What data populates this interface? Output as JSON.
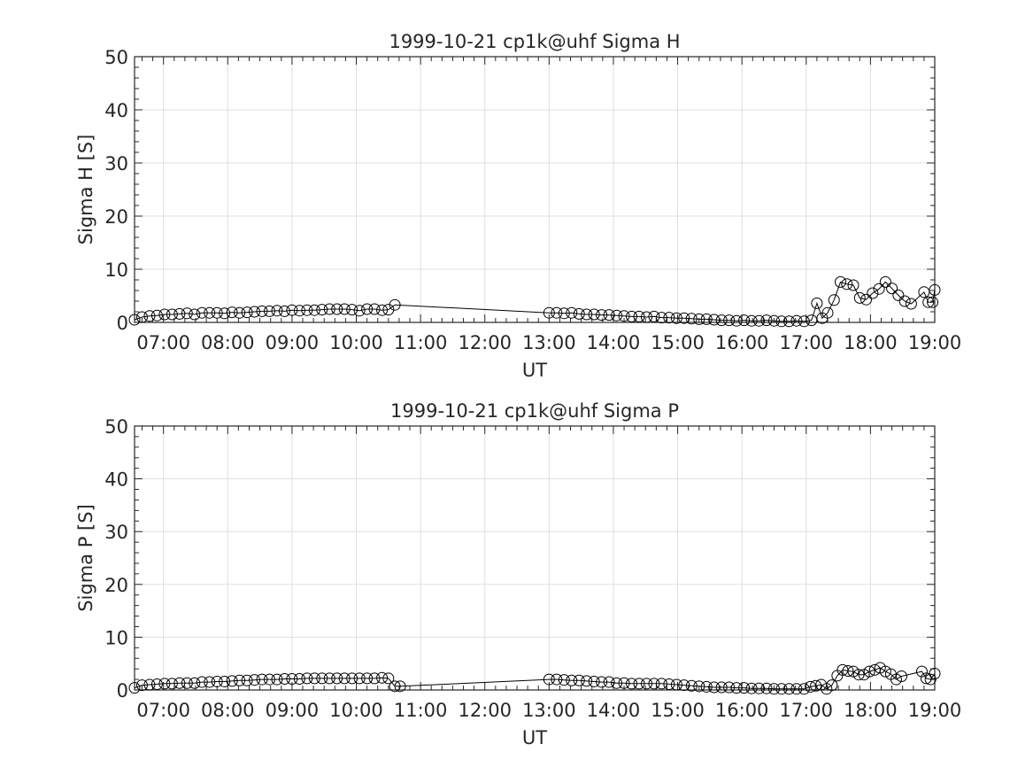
{
  "chart_data": [
    {
      "type": "line",
      "title": "1999-10-21  cp1k@uhf Sigma H",
      "xlabel": "UT",
      "ylabel": "Sigma H [S]",
      "xlim": [
        "06:33",
        "19:00"
      ],
      "ylim": [
        0,
        50
      ],
      "grid": true,
      "marker": "open-circle",
      "xticks": [
        "07:00",
        "08:00",
        "09:00",
        "10:00",
        "11:00",
        "12:00",
        "13:00",
        "14:00",
        "15:00",
        "16:00",
        "17:00",
        "18:00",
        "19:00"
      ],
      "yticks": [
        "0",
        "10",
        "20",
        "30",
        "40",
        "50"
      ],
      "series": [
        {
          "x": [
            "06:33",
            "06:40",
            "06:47",
            "06:54",
            "07:01",
            "07:08",
            "07:15",
            "07:22",
            "07:29",
            "07:36",
            "07:43",
            "07:50",
            "07:57",
            "08:04",
            "08:11",
            "08:18",
            "08:25",
            "08:32",
            "08:39",
            "08:46",
            "08:53",
            "09:00",
            "09:07",
            "09:14",
            "09:21",
            "09:28",
            "09:35",
            "09:42",
            "09:49",
            "09:56",
            "10:03",
            "10:10",
            "10:17",
            "10:24",
            "10:30",
            "10:36",
            "13:00",
            "13:07",
            "13:14",
            "13:21",
            "13:28",
            "13:35",
            "13:42",
            "13:49",
            "13:56",
            "14:03",
            "14:10",
            "14:17",
            "14:24",
            "14:31",
            "14:38",
            "14:45",
            "14:52",
            "14:59",
            "15:06",
            "15:13",
            "15:20",
            "15:27",
            "15:34",
            "15:41",
            "15:48",
            "15:55",
            "16:02",
            "16:09",
            "16:16",
            "16:23",
            "16:30",
            "16:37",
            "16:44",
            "16:51",
            "16:58",
            "17:05",
            "17:10",
            "17:15",
            "17:20",
            "17:26",
            "17:32",
            "17:38",
            "17:44",
            "17:50",
            "17:56",
            "18:02",
            "18:08",
            "18:14",
            "18:20",
            "18:26",
            "18:32",
            "18:38",
            "18:50",
            "18:54",
            "18:58",
            "19:00"
          ],
          "y": [
            0.5,
            1.0,
            1.2,
            1.3,
            1.5,
            1.5,
            1.6,
            1.7,
            1.5,
            1.8,
            1.8,
            1.8,
            1.7,
            1.9,
            1.8,
            1.9,
            2.0,
            2.1,
            2.1,
            2.2,
            2.1,
            2.3,
            2.2,
            2.3,
            2.3,
            2.4,
            2.5,
            2.5,
            2.5,
            2.4,
            2.2,
            2.5,
            2.5,
            2.3,
            2.4,
            3.3,
            1.8,
            1.8,
            1.7,
            1.8,
            1.6,
            1.5,
            1.5,
            1.4,
            1.4,
            1.3,
            1.2,
            1.1,
            1.1,
            1.0,
            1.1,
            0.9,
            0.9,
            0.8,
            0.8,
            0.7,
            0.6,
            0.6,
            0.5,
            0.4,
            0.4,
            0.3,
            0.4,
            0.3,
            0.3,
            0.4,
            0.3,
            0.2,
            0.2,
            0.3,
            0.2,
            0.4,
            3.6,
            0.8,
            1.8,
            4.2,
            7.6,
            7.2,
            7.0,
            4.6,
            4.3,
            5.5,
            6.3,
            7.6,
            6.4,
            5.1,
            4.0,
            3.5,
            5.7,
            3.8,
            3.8,
            6.1
          ]
        }
      ]
    },
    {
      "type": "line",
      "title": "1999-10-21  cp1k@uhf Sigma P",
      "xlabel": "UT",
      "ylabel": "Sigma P [S]",
      "xlim": [
        "06:33",
        "19:00"
      ],
      "ylim": [
        0,
        50
      ],
      "grid": true,
      "marker": "open-circle",
      "xticks": [
        "07:00",
        "08:00",
        "09:00",
        "10:00",
        "11:00",
        "12:00",
        "13:00",
        "14:00",
        "15:00",
        "16:00",
        "17:00",
        "18:00",
        "19:00"
      ],
      "yticks": [
        "0",
        "10",
        "20",
        "30",
        "40",
        "50"
      ],
      "series": [
        {
          "x": [
            "06:33",
            "06:40",
            "06:47",
            "06:54",
            "07:01",
            "07:08",
            "07:15",
            "07:22",
            "07:29",
            "07:36",
            "07:43",
            "07:50",
            "07:57",
            "08:04",
            "08:11",
            "08:18",
            "08:25",
            "08:32",
            "08:39",
            "08:46",
            "08:53",
            "09:00",
            "09:07",
            "09:14",
            "09:21",
            "09:28",
            "09:35",
            "09:42",
            "09:49",
            "09:56",
            "10:03",
            "10:10",
            "10:17",
            "10:24",
            "10:30",
            "10:36",
            "10:41",
            "13:00",
            "13:07",
            "13:14",
            "13:21",
            "13:28",
            "13:35",
            "13:42",
            "13:49",
            "13:56",
            "14:03",
            "14:10",
            "14:17",
            "14:24",
            "14:31",
            "14:38",
            "14:45",
            "14:52",
            "14:59",
            "15:06",
            "15:13",
            "15:20",
            "15:27",
            "15:34",
            "15:41",
            "15:48",
            "15:55",
            "16:02",
            "16:09",
            "16:16",
            "16:23",
            "16:30",
            "16:37",
            "16:44",
            "16:51",
            "16:58",
            "17:04",
            "17:09",
            "17:14",
            "17:19",
            "17:24",
            "17:29",
            "17:34",
            "17:39",
            "17:44",
            "17:49",
            "17:54",
            "17:59",
            "18:04",
            "18:09",
            "18:14",
            "18:19",
            "18:24",
            "18:29",
            "18:48",
            "18:52",
            "18:56",
            "19:00"
          ],
          "y": [
            0.4,
            0.9,
            1.0,
            1.1,
            1.2,
            1.2,
            1.3,
            1.3,
            1.3,
            1.5,
            1.5,
            1.6,
            1.6,
            1.7,
            1.8,
            1.8,
            1.9,
            2.0,
            2.0,
            2.0,
            2.1,
            2.1,
            2.1,
            2.2,
            2.2,
            2.2,
            2.2,
            2.2,
            2.2,
            2.2,
            2.2,
            2.2,
            2.2,
            2.3,
            2.2,
            0.7,
            0.7,
            2.0,
            2.0,
            1.9,
            1.8,
            1.8,
            1.7,
            1.6,
            1.5,
            1.5,
            1.3,
            1.3,
            1.2,
            1.2,
            1.2,
            1.2,
            1.2,
            1.1,
            1.0,
            0.9,
            0.8,
            0.7,
            0.6,
            0.5,
            0.5,
            0.5,
            0.4,
            0.4,
            0.3,
            0.3,
            0.3,
            0.2,
            0.2,
            0.2,
            0.2,
            0.2,
            0.6,
            0.8,
            1.0,
            0.2,
            0.9,
            2.7,
            3.8,
            3.6,
            3.5,
            2.9,
            2.9,
            3.5,
            3.8,
            4.2,
            3.5,
            3.0,
            2.0,
            2.6,
            3.5,
            2.2,
            2.0,
            3.1
          ]
        }
      ]
    }
  ]
}
